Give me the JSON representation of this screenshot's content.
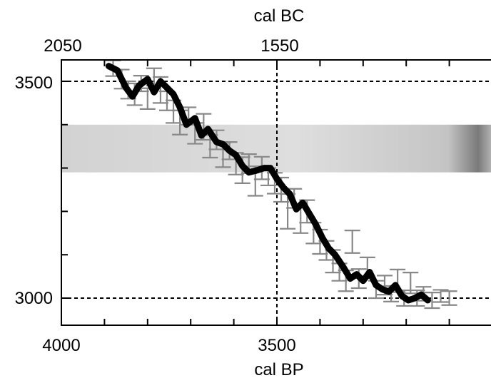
{
  "chart_data": {
    "type": "line",
    "title": "",
    "top_axis": {
      "label": "cal BC",
      "ticks": [
        2050,
        1550
      ]
    },
    "bottom_axis": {
      "label": "cal BP",
      "ticks": [
        4000,
        3500
      ]
    },
    "y_axis": {
      "label": "",
      "ticks": [
        3500,
        3000
      ]
    },
    "x_range_bp": [
      4000,
      3000
    ],
    "y_range": [
      2940,
      3540
    ],
    "reference_lines": {
      "x_bp": 3500,
      "y": [
        3500,
        3000
      ]
    },
    "grid": false,
    "band": {
      "y_low": 3290,
      "y_high": 3400
    },
    "calibration_curve": {
      "x_bp": [
        3890,
        3870,
        3850,
        3835,
        3820,
        3800,
        3785,
        3770,
        3755,
        3740,
        3725,
        3710,
        3690,
        3675,
        3660,
        3640,
        3625,
        3610,
        3595,
        3580,
        3565,
        3545,
        3530,
        3515,
        3500,
        3485,
        3470,
        3455,
        3440,
        3425,
        3410,
        3395,
        3380,
        3365,
        3345,
        3330,
        3315,
        3300,
        3285,
        3270,
        3255,
        3240,
        3225,
        3210,
        3195,
        3180,
        3165,
        3150
      ],
      "y": [
        3535,
        3525,
        3485,
        3465,
        3490,
        3505,
        3475,
        3500,
        3485,
        3470,
        3440,
        3400,
        3415,
        3375,
        3390,
        3360,
        3355,
        3340,
        3330,
        3305,
        3290,
        3295,
        3300,
        3300,
        3275,
        3255,
        3240,
        3205,
        3220,
        3195,
        3170,
        3140,
        3115,
        3100,
        3070,
        3045,
        3055,
        3040,
        3060,
        3030,
        3020,
        3015,
        3030,
        3005,
        2995,
        3000,
        3008,
        2995
      ]
    },
    "measurements": {
      "x_bp": [
        3880,
        3860,
        3845,
        3830,
        3815,
        3800,
        3785,
        3770,
        3755,
        3740,
        3725,
        3705,
        3690,
        3670,
        3655,
        3640,
        3625,
        3610,
        3595,
        3580,
        3565,
        3550,
        3535,
        3520,
        3505,
        3490,
        3475,
        3460,
        3445,
        3430,
        3415,
        3400,
        3385,
        3370,
        3355,
        3340,
        3325,
        3310,
        3290,
        3270,
        3250,
        3235,
        3220,
        3205,
        3190,
        3175,
        3160,
        3140,
        3120,
        3100
      ],
      "y": [
        3530,
        3505,
        3480,
        3470,
        3495,
        3460,
        3510,
        3480,
        3455,
        3430,
        3405,
        3420,
        3380,
        3395,
        3350,
        3365,
        3330,
        3340,
        3310,
        3295,
        3310,
        3270,
        3300,
        3280,
        3265,
        3250,
        3200,
        3230,
        3180,
        3200,
        3150,
        3130,
        3110,
        3085,
        3060,
        3040,
        3130,
        3045,
        3070,
        3020,
        3030,
        3010,
        3040,
        3000,
        3035,
        3000,
        3010,
        2995,
        3005,
        3000
      ],
      "err": [
        18,
        22,
        20,
        25,
        18,
        24,
        20,
        30,
        22,
        26,
        28,
        20,
        24,
        30,
        26,
        22,
        28,
        20,
        25,
        30,
        22,
        34,
        26,
        20,
        24,
        28,
        40,
        22,
        30,
        26,
        24,
        28,
        22,
        26,
        20,
        24,
        26,
        22,
        24,
        20,
        22,
        18,
        26,
        18,
        24,
        18,
        16,
        18,
        14,
        16
      ]
    }
  }
}
